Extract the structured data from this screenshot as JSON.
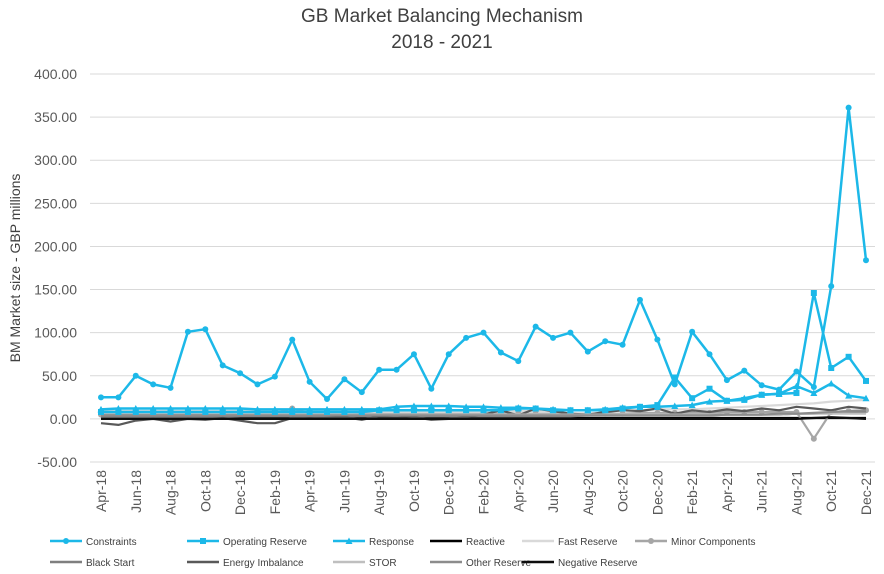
{
  "chart_data": {
    "type": "line",
    "title": "GB Market Balancing Mechanism",
    "subtitle": "2018 - 2021",
    "xlabel": "",
    "ylabel": "BM Market size - GBP millions",
    "ylim": [
      -50,
      400
    ],
    "yticks": [
      "-50.00",
      "0.00",
      "50.00",
      "100.00",
      "150.00",
      "200.00",
      "250.00",
      "300.00",
      "350.00",
      "400.00"
    ],
    "grid": "horizontal",
    "legend_position": "bottom",
    "x": [
      "Apr-18",
      "May-18",
      "Jun-18",
      "Jul-18",
      "Aug-18",
      "Sep-18",
      "Oct-18",
      "Nov-18",
      "Dec-18",
      "Jan-19",
      "Feb-19",
      "Mar-19",
      "Apr-19",
      "May-19",
      "Jun-19",
      "Jul-19",
      "Aug-19",
      "Sep-19",
      "Oct-19",
      "Nov-19",
      "Dec-19",
      "Jan-20",
      "Feb-20",
      "Mar-20",
      "Apr-20",
      "May-20",
      "Jun-20",
      "Jul-20",
      "Aug-20",
      "Sep-20",
      "Oct-20",
      "Nov-20",
      "Dec-20",
      "Jan-21",
      "Feb-21",
      "Mar-21",
      "Apr-21",
      "May-21",
      "Jun-21",
      "Jul-21",
      "Aug-21",
      "Sep-21",
      "Oct-21",
      "Nov-21",
      "Dec-21"
    ],
    "xtick_labels": [
      "Apr-18",
      "Jun-18",
      "Aug-18",
      "Oct-18",
      "Dec-18",
      "Feb-19",
      "Apr-19",
      "Jun-19",
      "Aug-19",
      "Oct-19",
      "Dec-19",
      "Feb-20",
      "Apr-20",
      "Jun-20",
      "Aug-20",
      "Oct-20",
      "Dec-20",
      "Feb-21",
      "Apr-21",
      "Jun-21",
      "Aug-21",
      "Oct-21",
      "Dec-21"
    ],
    "series": [
      {
        "name": "Constraints",
        "color": "#1cb8e8",
        "marker": "circle",
        "values": [
          25,
          25,
          50,
          40,
          36,
          101,
          104,
          62,
          53,
          40,
          49,
          92,
          43,
          23,
          46,
          31,
          57,
          57,
          75,
          35,
          75,
          94,
          100,
          77,
          67,
          107,
          94,
          100,
          78,
          90,
          86,
          138,
          92,
          40,
          101,
          75,
          45,
          56,
          39,
          34,
          55,
          37,
          154,
          361,
          184
        ]
      },
      {
        "name": "Operating Reserve",
        "color": "#1cb8e8",
        "marker": "square",
        "values": [
          8,
          8,
          8,
          8,
          8,
          8,
          8,
          8,
          8,
          8,
          8,
          8,
          8,
          8,
          8,
          8,
          10,
          10,
          10,
          10,
          10,
          10,
          10,
          10,
          12,
          12,
          10,
          10,
          10,
          10,
          12,
          14,
          16,
          48,
          24,
          35,
          21,
          22,
          28,
          29,
          30,
          146,
          59,
          72,
          44
        ]
      },
      {
        "name": "Response",
        "color": "#1cb8e8",
        "marker": "triangle",
        "values": [
          11,
          12,
          12,
          12,
          12,
          12,
          12,
          12,
          12,
          11,
          11,
          11,
          11,
          11,
          11,
          11,
          11,
          14,
          15,
          15,
          15,
          14,
          14,
          13,
          13,
          12,
          11,
          10,
          10,
          11,
          13,
          14,
          14,
          15,
          16,
          20,
          21,
          24,
          28,
          29,
          38,
          30,
          41,
          27,
          24
        ]
      },
      {
        "name": "Reactive",
        "color": "#000000",
        "marker": "none",
        "values": [
          1,
          1,
          1,
          1,
          1,
          1,
          1,
          1,
          1,
          1,
          1,
          1,
          1,
          1,
          1,
          1,
          1,
          1,
          1,
          1,
          1,
          1,
          1,
          1,
          1,
          1,
          1,
          1,
          1,
          1,
          1,
          1,
          1,
          1,
          1,
          1,
          1,
          1,
          1,
          1,
          1,
          1,
          1,
          1,
          1
        ]
      },
      {
        "name": "Fast Reserve",
        "color": "#d9d9d9",
        "marker": "none",
        "values": [
          9,
          9,
          9,
          9,
          9,
          9,
          9,
          9,
          9,
          9,
          9,
          9,
          9,
          9,
          9,
          9,
          9,
          9,
          9,
          9,
          9,
          9,
          9,
          9,
          9,
          9,
          9,
          10,
          10,
          10,
          10,
          10,
          11,
          11,
          11,
          12,
          13,
          14,
          15,
          16,
          17,
          18,
          20,
          21,
          22
        ]
      },
      {
        "name": "Minor Components",
        "color": "#a6a6a6",
        "marker": "circle",
        "values": [
          5,
          5,
          5,
          5,
          5,
          6,
          6,
          6,
          6,
          6,
          6,
          12,
          6,
          6,
          6,
          6,
          6,
          6,
          6,
          6,
          6,
          6,
          6,
          6,
          6,
          6,
          6,
          6,
          6,
          6,
          6,
          7,
          7,
          7,
          7,
          7,
          8,
          8,
          8,
          8,
          8,
          -23,
          8,
          9,
          10
        ]
      },
      {
        "name": "Black Start",
        "color": "#7f7f7f",
        "marker": "none",
        "values": [
          2,
          2,
          2,
          2,
          2,
          2,
          2,
          2,
          3,
          3,
          3,
          3,
          3,
          3,
          3,
          3,
          3,
          3,
          3,
          3,
          3,
          3,
          3,
          3,
          3,
          3,
          3,
          3,
          4,
          4,
          4,
          4,
          4,
          4,
          4,
          4,
          5,
          5,
          5,
          5,
          6,
          6,
          7,
          7,
          8
        ]
      },
      {
        "name": "Energy Imbalance",
        "color": "#595959",
        "marker": "none",
        "values": [
          -5,
          -7,
          -2,
          0,
          -3,
          0,
          -1,
          1,
          -2,
          -5,
          -5,
          1,
          0,
          1,
          2,
          -1,
          3,
          4,
          2,
          -1,
          0,
          2,
          5,
          10,
          4,
          12,
          9,
          6,
          5,
          8,
          10,
          9,
          12,
          6,
          10,
          8,
          11,
          9,
          12,
          10,
          14,
          12,
          10,
          14,
          12
        ]
      },
      {
        "name": "STOR",
        "color": "#bfbfbf",
        "marker": "none",
        "values": [
          7,
          7,
          7,
          7,
          7,
          7,
          7,
          7,
          7,
          6,
          6,
          6,
          6,
          6,
          6,
          5,
          5,
          5,
          5,
          5,
          5,
          5,
          5,
          5,
          5,
          5,
          5,
          5,
          5,
          5,
          5,
          5,
          5,
          5,
          5,
          5,
          5,
          5,
          5,
          5,
          6,
          6,
          6,
          6,
          6
        ]
      },
      {
        "name": "Other Reserve",
        "color": "#8c8c8c",
        "marker": "none",
        "values": [
          4,
          4,
          4,
          4,
          4,
          4,
          4,
          4,
          4,
          4,
          4,
          4,
          4,
          4,
          4,
          4,
          4,
          4,
          4,
          4,
          4,
          4,
          4,
          4,
          4,
          4,
          4,
          4,
          4,
          4,
          4,
          4,
          4,
          4,
          4,
          4,
          5,
          5,
          5,
          6,
          6,
          7,
          8,
          9,
          10
        ]
      },
      {
        "name": "Negative Reserve",
        "color": "#0d0d0d",
        "marker": "none",
        "values": [
          0,
          0,
          0,
          0,
          0,
          0,
          0,
          0,
          0,
          0,
          0,
          0,
          0,
          0,
          0,
          0,
          0,
          0,
          0,
          0,
          0,
          0,
          0,
          0,
          0,
          0,
          0,
          0,
          0,
          0,
          0,
          0,
          0,
          0,
          0,
          0,
          0,
          0,
          0,
          0,
          0,
          1,
          2,
          1,
          0
        ]
      }
    ]
  }
}
